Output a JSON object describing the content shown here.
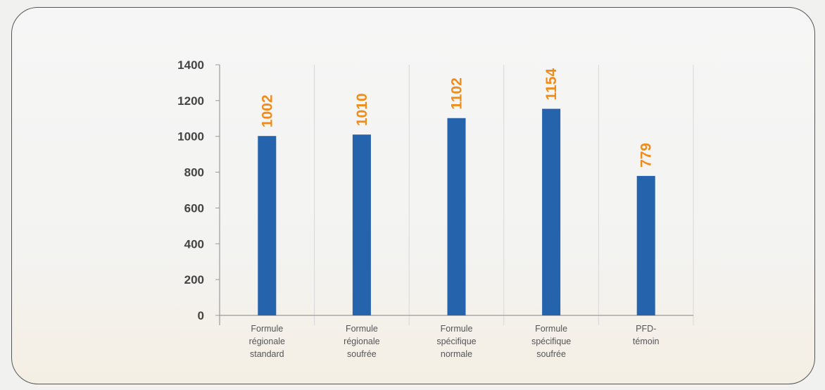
{
  "chart_data": {
    "type": "bar",
    "categories": [
      [
        "Formule",
        "régionale",
        "standard"
      ],
      [
        "Formule",
        "régionale",
        "soufrée"
      ],
      [
        "Formule",
        "spécifique",
        "normale"
      ],
      [
        "Formule",
        "spécifique",
        "soufrée"
      ],
      [
        "PFD-",
        "témoin"
      ]
    ],
    "values": [
      1002,
      1010,
      1102,
      1154,
      779
    ],
    "data_labels": [
      "1002",
      "1010",
      "1102",
      "1154",
      "779"
    ],
    "y_ticks": [
      "0",
      "200",
      "400",
      "600",
      "800",
      "1000",
      "1200",
      "1400"
    ],
    "ylim": [
      0,
      1400
    ],
    "title": "",
    "xlabel": "",
    "ylabel": "",
    "grid": "vertical separators only",
    "legend": "none",
    "colors": {
      "bar": "#2563ad",
      "data_label": "#f08c1a",
      "axis": "#9a9a9a",
      "separator": "#d8d8d8",
      "tick_text": "#444444",
      "category_text": "#555555"
    }
  }
}
